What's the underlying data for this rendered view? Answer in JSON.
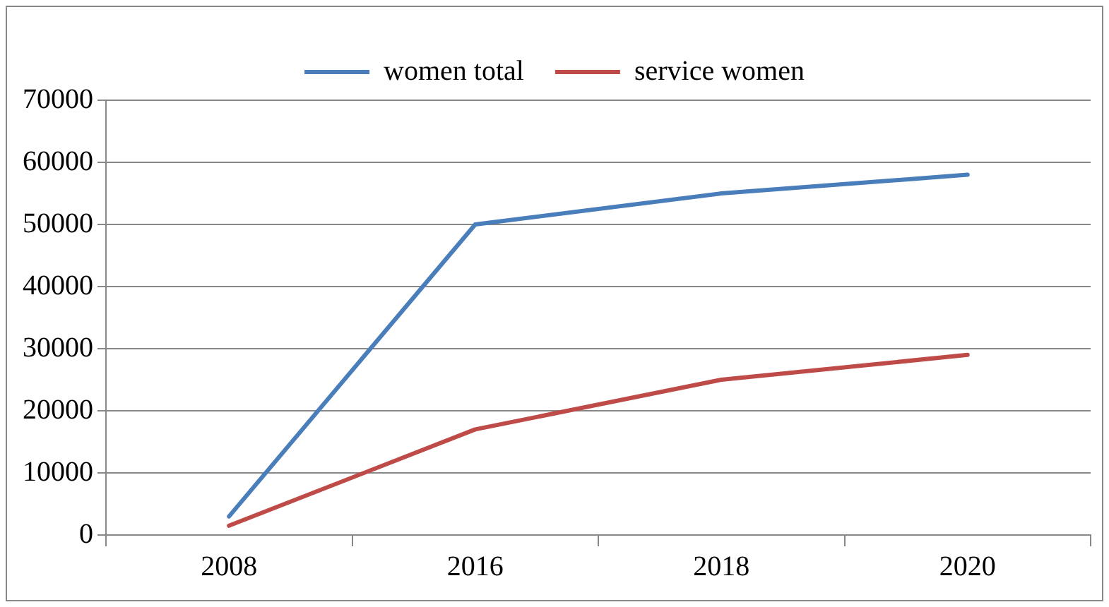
{
  "chart_data": {
    "type": "line",
    "categories": [
      "2008",
      "2016",
      "2018",
      "2020"
    ],
    "series": [
      {
        "name": "women total",
        "color": "#4a7ebb",
        "values": [
          3000,
          50000,
          55000,
          58000
        ]
      },
      {
        "name": "service women",
        "color": "#be4b48",
        "values": [
          1500,
          17000,
          25000,
          29000
        ]
      }
    ],
    "ylim": [
      0,
      70000
    ],
    "yticks": [
      0,
      10000,
      20000,
      30000,
      40000,
      50000,
      60000,
      70000
    ],
    "grid": "y",
    "legend": "top",
    "marker": "none",
    "line_style": "solid"
  }
}
